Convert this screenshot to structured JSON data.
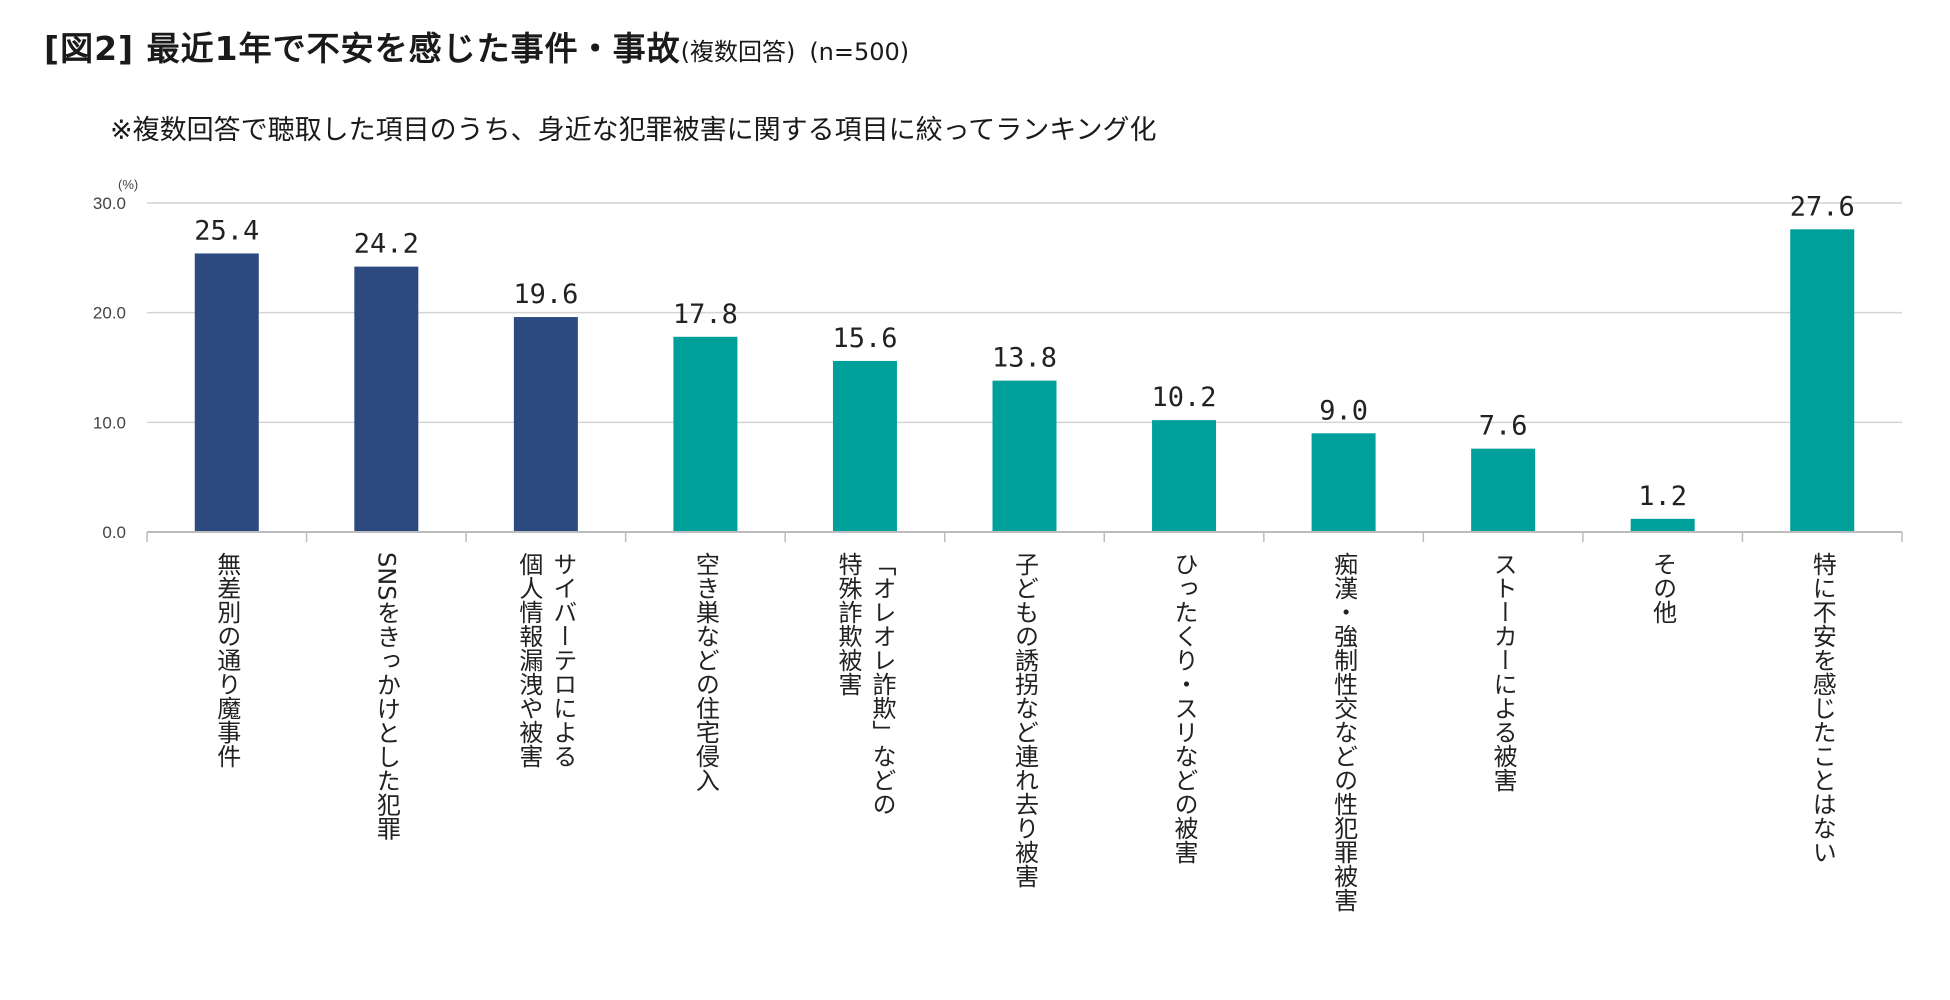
{
  "header": {
    "title_main": "[図2] 最近1年で不安を感じた事件・事故",
    "title_sub": "(複数回答)",
    "title_n": "(n=500)",
    "subtitle": "※複数回答で聴取した項目のうち、身近な犯罪被害に関する項目に絞ってランキング化"
  },
  "colors": {
    "navy": "#2c4a80",
    "teal": "#00a09a",
    "grid": "#d4d4d4",
    "axis": "#bcbcbc",
    "text": "#222222",
    "tick": "#444444"
  },
  "chart_data": {
    "type": "bar",
    "title": "最近1年で不安を感じた事件・事故",
    "ylabel": "(%)",
    "xlabel": "",
    "ylim": [
      0,
      30
    ],
    "yticks": [
      "0.0",
      "10.0",
      "20.0",
      "30.0"
    ],
    "categories": [
      "無差別の通り魔事件",
      "SNSをきっかけとした犯罪",
      "サイバーテロによる\n個人情報漏洩や被害",
      "空き巣などの住宅侵入",
      "「オレオレ詐欺」などの\n特殊詐欺被害",
      "子どもの誘拐など連れ去り被害",
      "ひったくり・スリなどの被害",
      "痴漢・強制性交などの性犯罪被害",
      "ストーカーによる被害",
      "その他",
      "特に不安を感じたことはない"
    ],
    "values": [
      25.4,
      24.2,
      19.6,
      17.8,
      15.6,
      13.8,
      10.2,
      9.0,
      7.6,
      1.2,
      27.6
    ],
    "value_labels": [
      "25.4",
      "24.2",
      "19.6",
      "17.8",
      "15.6",
      "13.8",
      "10.2",
      "9.0",
      "7.6",
      "1.2",
      "27.6"
    ],
    "bar_colors": [
      "navy",
      "navy",
      "navy",
      "teal",
      "teal",
      "teal",
      "teal",
      "teal",
      "teal",
      "teal",
      "teal"
    ],
    "grid": true
  }
}
